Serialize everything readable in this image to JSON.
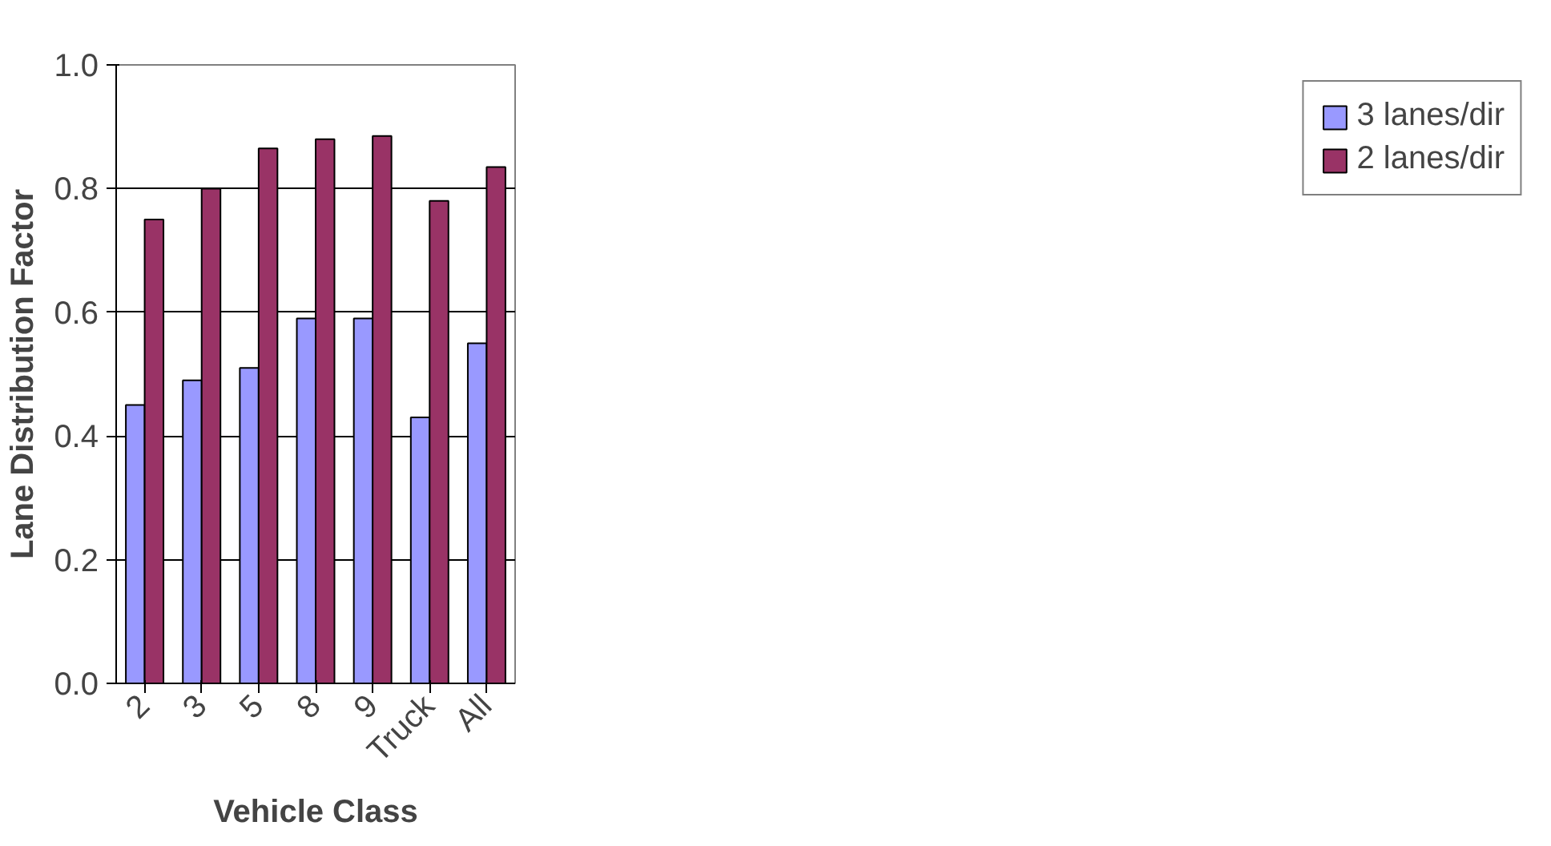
{
  "chart_data": {
    "type": "bar",
    "xlabel": "Vehicle Class",
    "ylabel": "Lane Distribution Factor",
    "categories": [
      "2",
      "3",
      "5",
      "8",
      "9",
      "Truck",
      "All"
    ],
    "series": [
      {
        "name": "3 lanes/dir",
        "color": "#9999ff",
        "values": [
          0.45,
          0.49,
          0.51,
          0.59,
          0.59,
          0.43,
          0.55
        ]
      },
      {
        "name": "2 lanes/dir",
        "color": "#993366",
        "values": [
          0.75,
          0.8,
          0.865,
          0.88,
          0.885,
          0.78,
          0.835
        ]
      }
    ],
    "ylim": [
      0,
      1.0
    ],
    "yticks": [
      {
        "value": 0,
        "label": "0.0"
      },
      {
        "value": 0.2,
        "label": "0.2"
      },
      {
        "value": 0.4,
        "label": "0.4"
      },
      {
        "value": 0.6,
        "label": "0.6"
      },
      {
        "value": 0.8,
        "label": "0.8"
      },
      {
        "value": 1.0,
        "label": "1.0"
      }
    ],
    "grid": "y",
    "legend": "right"
  }
}
